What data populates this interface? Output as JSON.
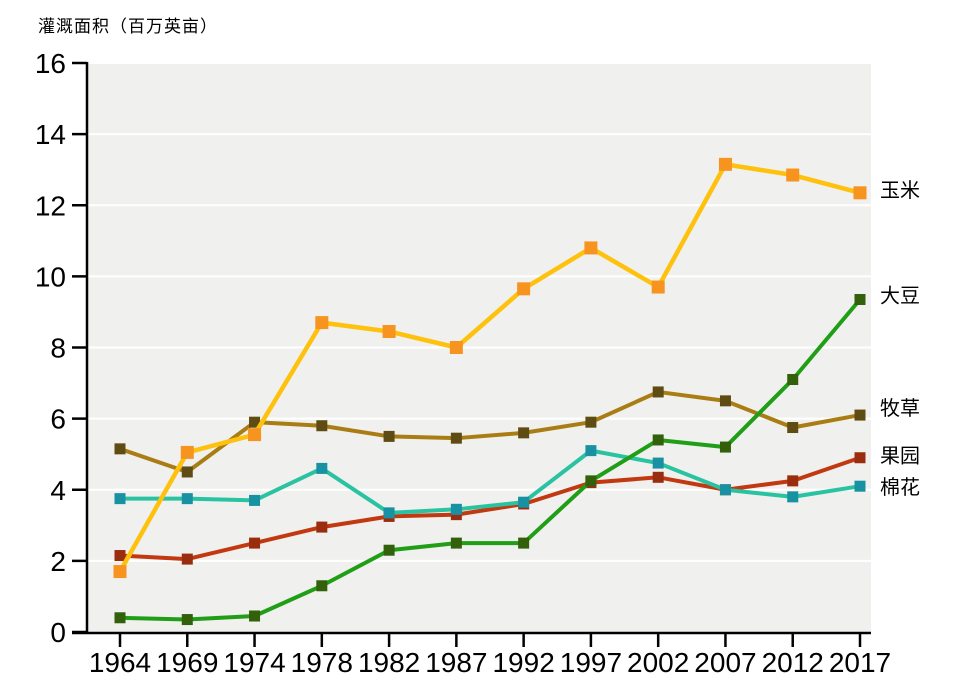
{
  "title": "灌溉面积（百万英亩）",
  "chart_data": {
    "type": "line",
    "title": "灌溉面积（百万英亩）",
    "xlabel": "",
    "ylabel": "灌溉面积（百万英亩）",
    "x": [
      1964,
      1969,
      1974,
      1978,
      1982,
      1987,
      1992,
      1997,
      2002,
      2007,
      2012,
      2017
    ],
    "ylim": [
      0,
      16
    ],
    "yticks": [
      0,
      2,
      4,
      6,
      8,
      10,
      12,
      14,
      16
    ],
    "grid": "horizontal-white-lines",
    "plot_bg": "#f0f0ee",
    "axis_color": "#000000",
    "legend_position": "right-end-of-lines",
    "series": [
      {
        "id": "orchard",
        "name": "果园",
        "line_color": "#c23911",
        "marker_color": "#9a2d0d",
        "values": [
          2.15,
          2.05,
          2.5,
          2.95,
          3.25,
          3.3,
          3.6,
          4.2,
          4.35,
          4.0,
          4.25,
          4.9
        ]
      },
      {
        "id": "cotton",
        "name": "棉花",
        "line_color": "#29c3a2",
        "marker_color": "#1891a3",
        "values": [
          3.75,
          3.75,
          3.7,
          4.6,
          3.35,
          3.45,
          3.65,
          5.1,
          4.75,
          4.0,
          3.8,
          4.1
        ]
      },
      {
        "id": "pasture",
        "name": "牧草",
        "line_color": "#a97d13",
        "marker_color": "#5f4c12",
        "values": [
          5.15,
          4.5,
          5.9,
          5.8,
          5.5,
          5.45,
          5.6,
          5.9,
          6.75,
          6.5,
          5.75,
          6.1
        ]
      },
      {
        "id": "corn",
        "name": "玉米",
        "line_color": "#fec10d",
        "marker_color": "#f79420",
        "values": [
          1.7,
          5.05,
          5.55,
          8.7,
          8.45,
          8.0,
          9.65,
          10.8,
          9.7,
          13.15,
          12.85,
          12.35
        ]
      },
      {
        "id": "soybean",
        "name": "大豆",
        "line_color": "#1f9e16",
        "marker_color": "#33600b",
        "values": [
          0.4,
          0.35,
          0.45,
          1.3,
          2.3,
          2.5,
          2.5,
          4.25,
          5.4,
          5.2,
          7.1,
          9.35
        ]
      }
    ]
  }
}
